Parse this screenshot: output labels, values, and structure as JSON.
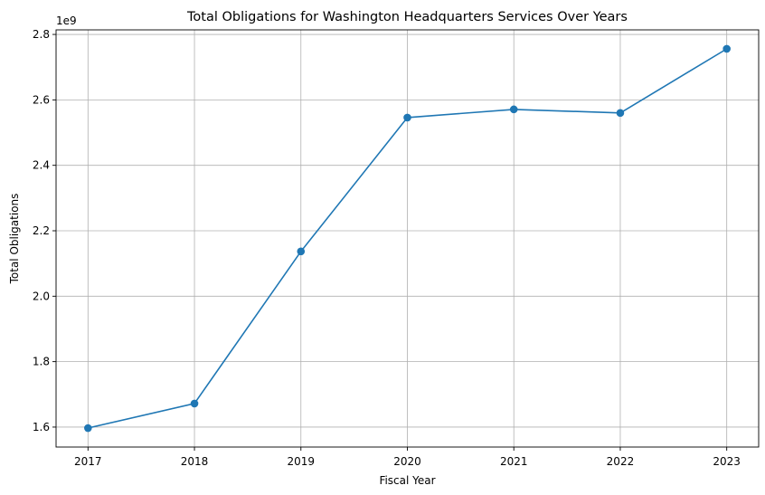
{
  "chart_data": {
    "type": "line",
    "title": "Total Obligations for Washington Headquarters Services Over Years",
    "xlabel": "Fiscal Year",
    "ylabel": "Total Obligations",
    "y_offset_label": "1e9",
    "x": [
      2017,
      2018,
      2019,
      2020,
      2021,
      2022,
      2023
    ],
    "series": [
      {
        "values": [
          1.597,
          1.672,
          2.137,
          2.546,
          2.571,
          2.56,
          2.756
        ],
        "color": "#1f77b4",
        "marker": "circle"
      }
    ],
    "y_ticks": [
      1.6,
      1.8,
      2.0,
      2.2,
      2.4,
      2.6,
      2.8
    ],
    "y_tick_labels": [
      "1.6",
      "1.8",
      "2.0",
      "2.2",
      "2.4",
      "2.6",
      "2.8"
    ],
    "x_tick_labels": [
      "2017",
      "2018",
      "2019",
      "2020",
      "2021",
      "2022",
      "2023"
    ],
    "xlim": [
      2016.7,
      2023.3
    ],
    "ylim": [
      1.539,
      2.814
    ],
    "grid": true
  }
}
